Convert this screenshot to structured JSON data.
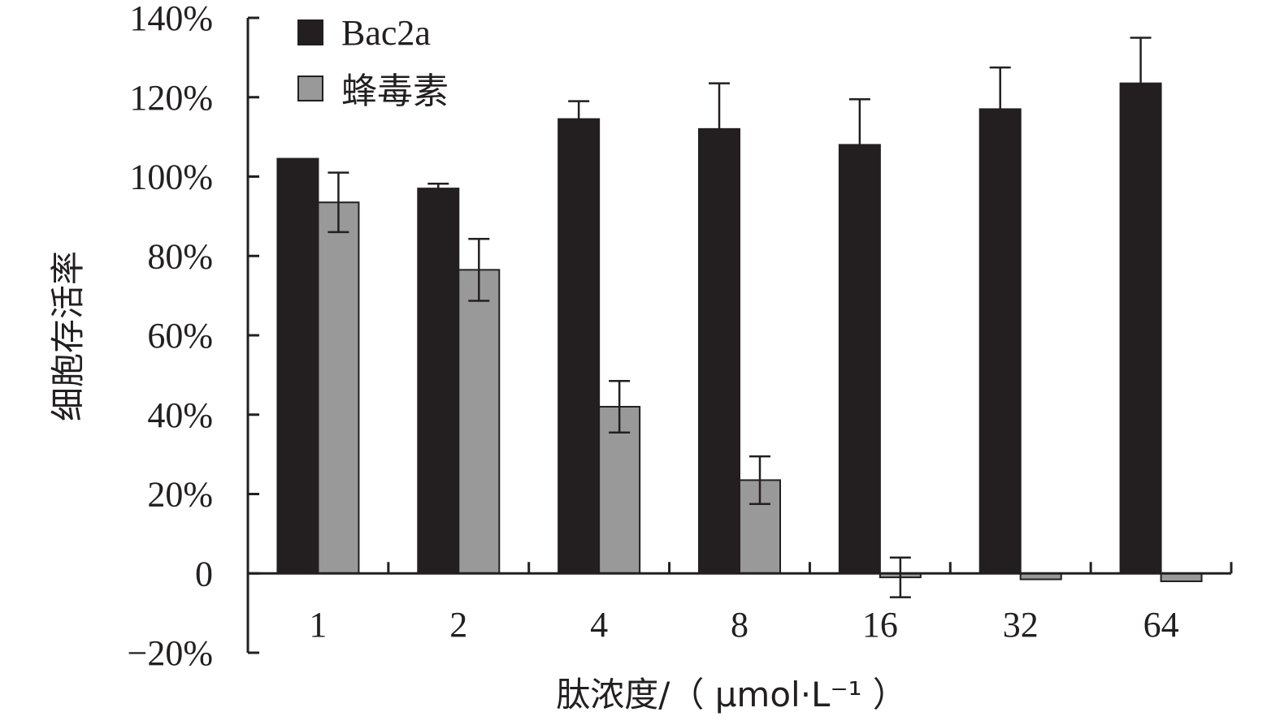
{
  "chart_data": {
    "type": "bar",
    "title": "",
    "xlabel": "肽浓度/（ μmol·L⁻¹ ）",
    "ylabel": "细胞存活率",
    "categories": [
      "1",
      "2",
      "4",
      "8",
      "16",
      "32",
      "64"
    ],
    "ylim": [
      -20,
      140
    ],
    "yticks": [
      -20,
      0,
      20,
      40,
      60,
      80,
      100,
      120,
      140
    ],
    "ytick_labels": [
      "−20%",
      "0",
      "20%",
      "40%",
      "60%",
      "80%",
      "100%",
      "120%",
      "140%"
    ],
    "series": [
      {
        "name": "Bac2a",
        "color": "#231f20",
        "values": [
          104.5,
          97,
          114.5,
          112,
          108,
          117,
          123.5
        ],
        "errors": [
          0,
          1.2,
          4.5,
          11.5,
          11.5,
          10.5,
          11.5
        ]
      },
      {
        "name": "蜂毒素",
        "color": "#999999",
        "values": [
          93.5,
          76.5,
          42,
          23.5,
          -1,
          -1.5,
          -2
        ],
        "errors": [
          7.5,
          7.8,
          6.5,
          6,
          5,
          0,
          0
        ]
      }
    ],
    "legend": "top-left",
    "grid": false
  }
}
